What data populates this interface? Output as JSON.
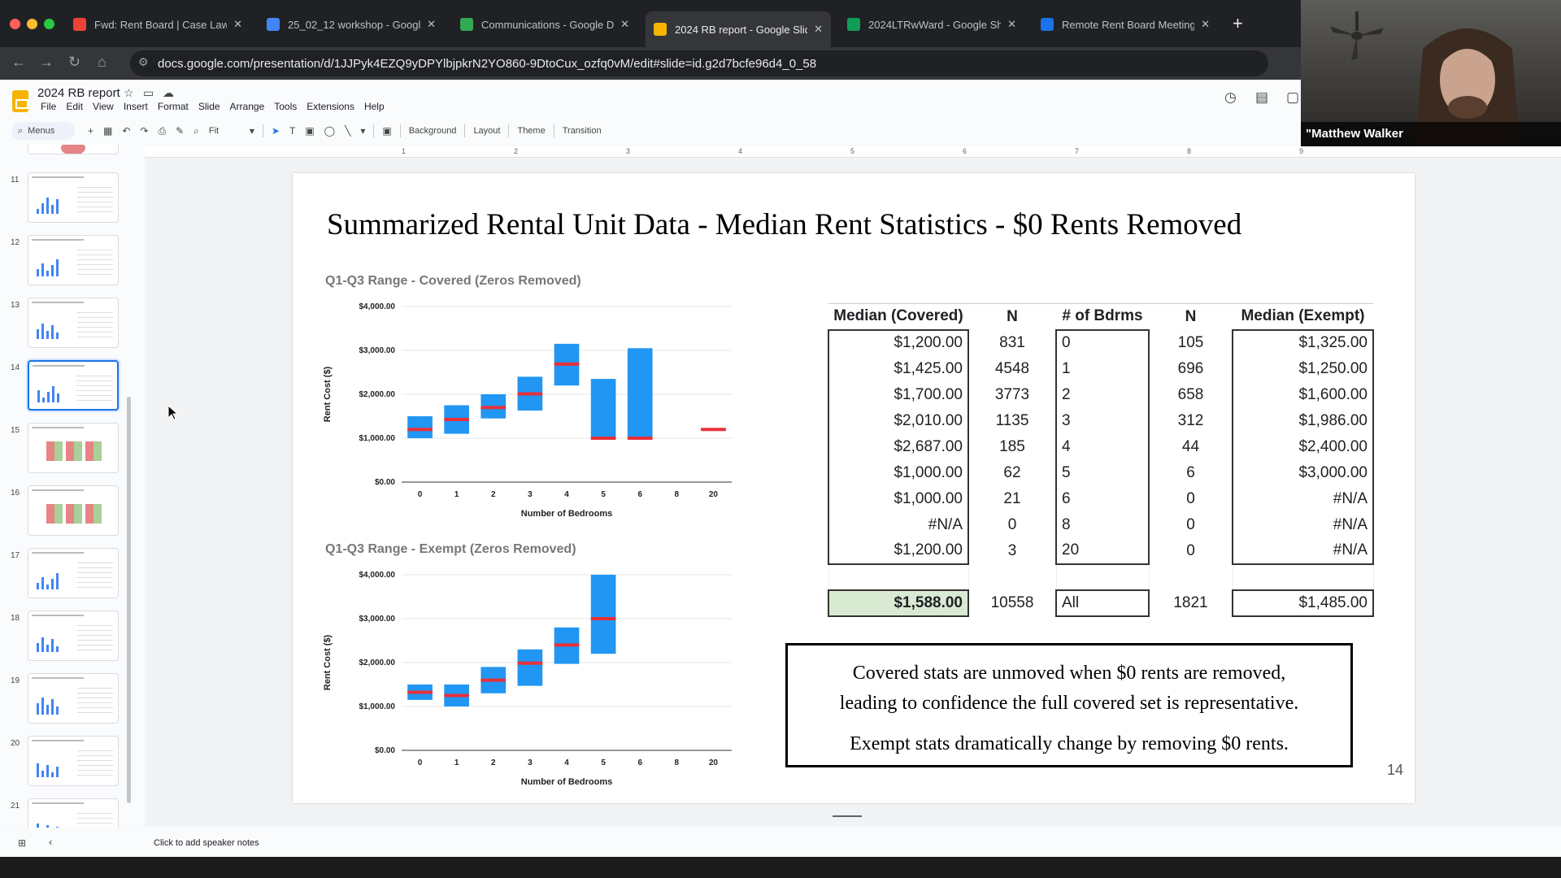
{
  "browser": {
    "tabs": [
      {
        "title": "Fwd: Rent Board | Case Law",
        "icon": "gmail-icon",
        "color": "#ea4335"
      },
      {
        "title": "25_02_12 workshop - Google",
        "icon": "docs-icon",
        "color": "#4285f4"
      },
      {
        "title": "Communications - Google Dr",
        "icon": "drive-icon",
        "color": "#34a853"
      },
      {
        "title": "2024 RB report - Google Slid",
        "icon": "slides-icon",
        "color": "#f6b400"
      },
      {
        "title": "2024LTRwWard - Google She",
        "icon": "sheets-icon",
        "color": "#0f9d58"
      },
      {
        "title": "Remote Rent Board Meeting",
        "icon": "video-icon",
        "color": "#1a73e8"
      }
    ],
    "active_tab": 3,
    "url": "docs.google.com/presentation/d/1JJPyk4EZQ9yDPYlbjpkrN2YO860-9DtoCux_ozfq0vM/edit#slide=id.g2d7bcfe96d4_0_58"
  },
  "docs": {
    "title": "2024 RB report",
    "menus": [
      "File",
      "Edit",
      "View",
      "Insert",
      "Format",
      "Slide",
      "Arrange",
      "Tools",
      "Extensions",
      "Help"
    ],
    "toolbar": {
      "search_label": "Menus",
      "zoom": "Fit",
      "background": "Background",
      "layout": "Layout",
      "theme": "Theme",
      "transition": "Transition"
    }
  },
  "ruler": [
    "1",
    "2",
    "3",
    "4",
    "5",
    "6",
    "7",
    "8",
    "9"
  ],
  "filmstrip": {
    "numbers": [
      "11",
      "12",
      "13",
      "14",
      "15",
      "16",
      "17",
      "18",
      "19",
      "20",
      "21"
    ],
    "selected": "14"
  },
  "slide": {
    "title": "Summarized Rental Unit Data - Median Rent Statistics - $0 Rents Removed",
    "note_line1": "Covered stats are unmoved when $0 rents are removed,",
    "note_line2": "leading to confidence the full covered set is representative.",
    "note_line3": "Exempt stats dramatically change by removing $0 rents.",
    "number": "14"
  },
  "table": {
    "headers": [
      "Median (Covered)",
      "N",
      "# of Bdrms",
      "N",
      "Median (Exempt)"
    ],
    "rows": [
      [
        "$1,200.00",
        "831",
        "0",
        "105",
        "$1,325.00"
      ],
      [
        "$1,425.00",
        "4548",
        "1",
        "696",
        "$1,250.00"
      ],
      [
        "$1,700.00",
        "3773",
        "2",
        "658",
        "$1,600.00"
      ],
      [
        "$2,010.00",
        "1135",
        "3",
        "312",
        "$1,986.00"
      ],
      [
        "$2,687.00",
        "185",
        "4",
        "44",
        "$2,400.00"
      ],
      [
        "$1,000.00",
        "62",
        "5",
        "6",
        "$3,000.00"
      ],
      [
        "$1,000.00",
        "21",
        "6",
        "0",
        "#N/A"
      ],
      [
        "#N/A",
        "0",
        "8",
        "0",
        "#N/A"
      ],
      [
        "$1,200.00",
        "3",
        "20",
        "0",
        "#N/A"
      ]
    ],
    "total": [
      "$1,588.00",
      "10558",
      "All",
      "1821",
      "$1,485.00"
    ]
  },
  "chart_data": [
    {
      "type": "bar",
      "title": "Q1-Q3 Range - Covered (Zeros Removed)",
      "xlabel": "Number of Bedrooms",
      "ylabel": "Rent Cost ($)",
      "ylim": [
        0,
        4000
      ],
      "yticks": [
        "$0.00",
        "$1,000.00",
        "$2,000.00",
        "$3,000.00",
        "$4,000.00"
      ],
      "categories": [
        "0",
        "1",
        "2",
        "3",
        "4",
        "5",
        "6",
        "8",
        "20"
      ],
      "q1": [
        1000,
        1100,
        1450,
        1630,
        2200,
        1000,
        1000,
        null,
        null
      ],
      "q3": [
        1500,
        1750,
        2000,
        2400,
        3150,
        2350,
        3050,
        null,
        null
      ],
      "median": [
        1200,
        1425,
        1700,
        2010,
        2687,
        1000,
        1000,
        null,
        1200
      ],
      "colors": {
        "box": "#2196f3",
        "median": "#e8303a"
      },
      "grid": true
    },
    {
      "type": "bar",
      "title": "Q1-Q3 Range - Exempt (Zeros Removed)",
      "xlabel": "Number of Bedrooms",
      "ylabel": "Rent Cost ($)",
      "ylim": [
        0,
        4000
      ],
      "yticks": [
        "$0.00",
        "$1,000.00",
        "$2,000.00",
        "$3,000.00",
        "$4,000.00"
      ],
      "categories": [
        "0",
        "1",
        "2",
        "3",
        "4",
        "5",
        "6",
        "8",
        "20"
      ],
      "q1": [
        1150,
        1000,
        1300,
        1470,
        1970,
        2200,
        null,
        null,
        null
      ],
      "q3": [
        1500,
        1500,
        1900,
        2300,
        2800,
        4000,
        null,
        null,
        null
      ],
      "median": [
        1325,
        1250,
        1600,
        1986,
        2400,
        3000,
        null,
        null,
        null
      ],
      "colors": {
        "box": "#2196f3",
        "median": "#e8303a"
      },
      "grid": true
    }
  ],
  "speaker_notes_placeholder": "Click to add speaker notes",
  "webcam": {
    "name": "\"Matthew Walker"
  }
}
